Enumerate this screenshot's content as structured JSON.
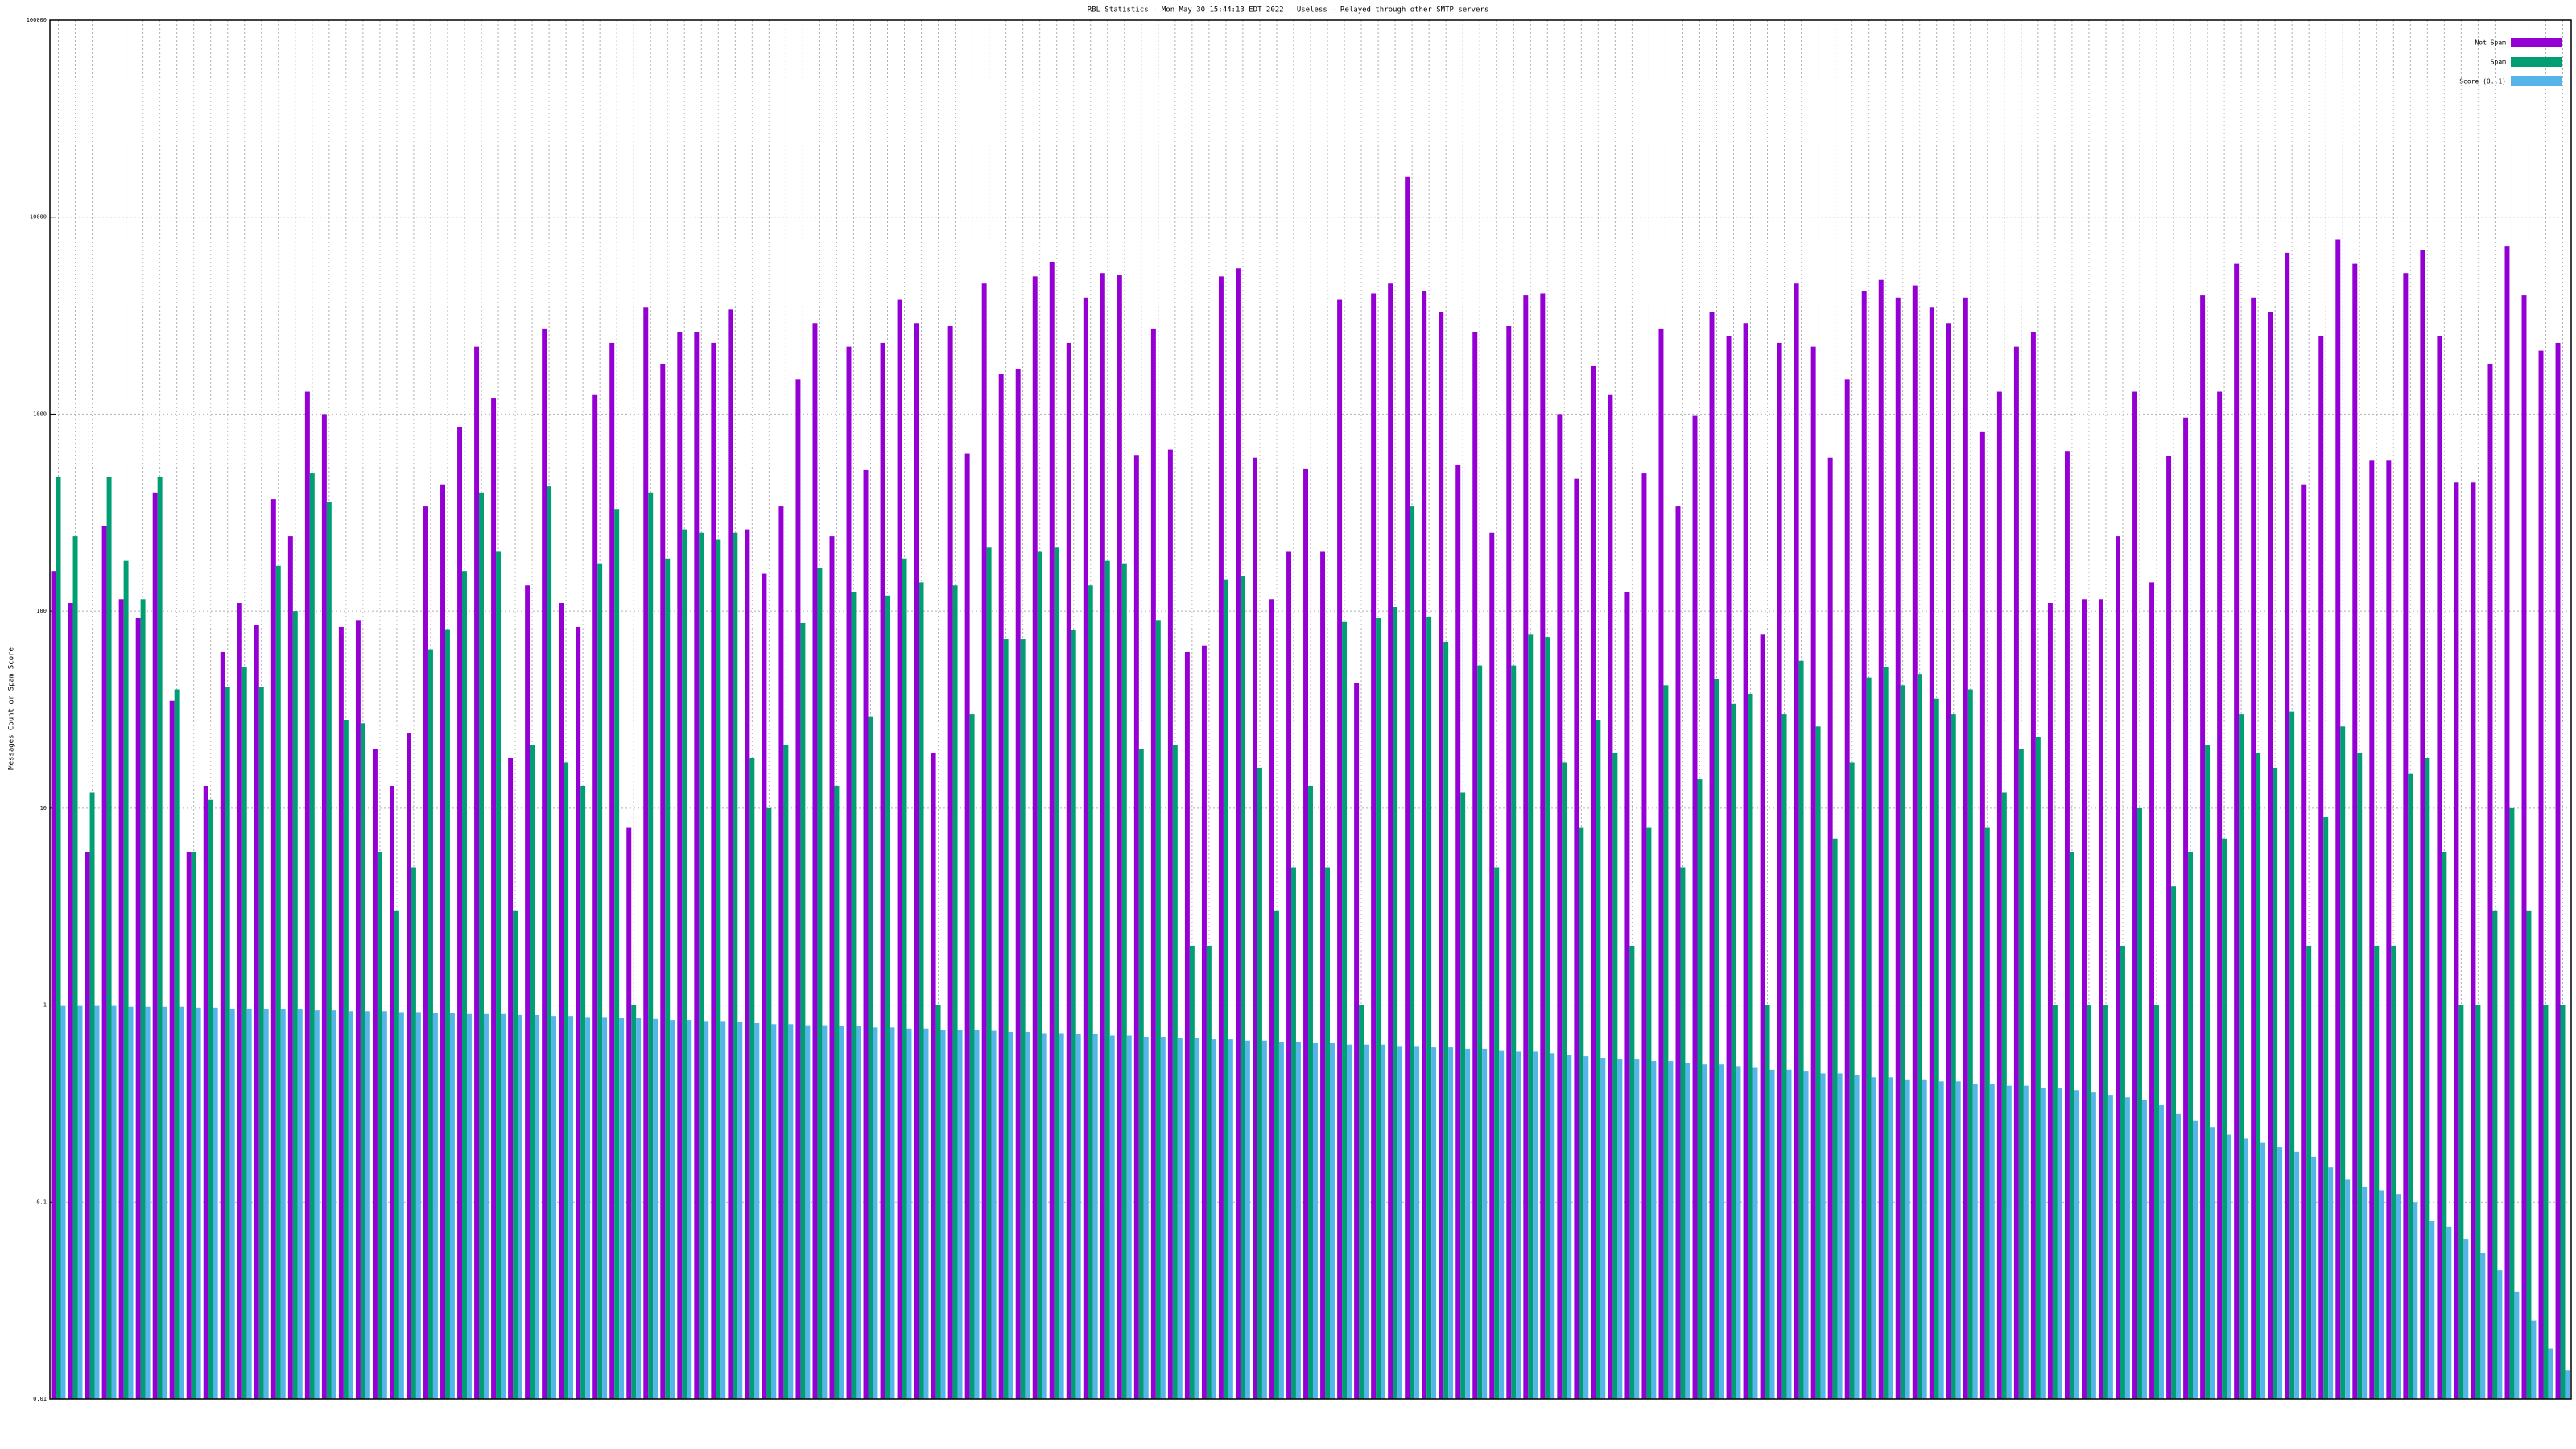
{
  "chart_data": {
    "type": "bar",
    "title": "RBL Statistics - Mon May 30 15:44:13 EDT 2022 - Useless - Relayed through other SMTP servers",
    "ylabel": "Messages Count or Spam Score",
    "log_scale": true,
    "grid": true,
    "legend_position": "top-right",
    "ylim": [
      0.01,
      100000
    ],
    "yticks": [
      0.01,
      0.1,
      1,
      10,
      100,
      1000,
      10000,
      100000
    ],
    "categories": [
      null,
      null,
      null,
      null,
      null,
      null,
      null,
      null,
      null,
      null,
      null,
      null,
      null,
      null,
      null,
      null,
      null,
      null,
      null,
      null,
      null,
      null,
      null,
      null,
      null,
      null,
      null,
      null,
      null,
      null,
      null,
      null,
      null,
      null,
      null,
      null,
      null,
      null,
      null,
      null,
      null,
      null,
      null,
      null,
      null,
      null,
      null,
      null,
      null,
      null,
      null,
      null,
      null,
      null,
      null,
      null,
      null,
      null,
      null,
      null,
      null,
      null,
      null,
      null,
      null,
      null,
      null,
      null,
      null,
      null,
      null,
      null,
      null,
      null,
      null,
      null,
      null,
      null,
      null,
      null,
      null,
      null,
      null,
      null,
      null,
      null,
      null,
      null,
      null,
      null,
      null,
      null,
      null,
      null,
      null,
      null,
      null,
      null,
      null,
      null,
      null,
      null,
      null,
      null,
      null,
      null,
      null,
      null,
      null,
      null,
      null,
      null,
      null,
      null,
      null,
      null,
      null,
      null,
      null,
      null,
      null,
      null,
      null,
      null,
      null,
      null,
      null,
      null,
      null,
      null,
      null,
      null,
      null,
      null,
      null,
      null,
      null,
      null,
      null,
      null,
      null,
      null,
      null,
      null,
      null,
      null,
      null,
      null,
      null
    ],
    "series": [
      {
        "name": "Not Spam",
        "color": "#9400d3",
        "values": [
          160,
          110,
          6,
          270,
          115,
          92,
          400,
          35,
          6,
          13,
          62,
          110,
          85,
          370,
          240,
          1300,
          1000,
          83,
          90,
          20,
          13,
          24,
          340,
          440,
          860,
          2200,
          1200,
          18,
          135,
          2700,
          110,
          83,
          1250,
          2300,
          8,
          3500,
          1800,
          2600,
          2600,
          2300,
          3400,
          260,
          155,
          340,
          1500,
          2900,
          240,
          2200,
          520,
          2300,
          3800,
          2900,
          19,
          2800,
          630,
          4600,
          1600,
          1700,
          5000,
          5900,
          2300,
          3900,
          5200,
          5100,
          620,
          2700,
          660,
          62,
          67,
          5000,
          5500,
          600,
          115,
          200,
          530,
          200,
          3800,
          43,
          4100,
          4600,
          16000,
          4200,
          3300,
          550,
          2600,
          250,
          2800,
          4000,
          4100,
          1000,
          470,
          1750,
          1250,
          125,
          500,
          2700,
          340,
          980,
          3300,
          2500,
          2900,
          76,
          2300,
          4600,
          2200,
          600,
          1500,
          4200,
          4800,
          3900,
          4500,
          3500,
          2900,
          3900,
          810,
          1300,
          2200,
          2600,
          110,
          650,
          115,
          115,
          240,
          1300,
          140,
          610,
          960,
          4000,
          1300,
          5800,
          3900,
          3300,
          6600,
          440,
          2500,
          7700,
          5800,
          580,
          580,
          5200,
          6800,
          2500,
          450,
          450,
          1800,
          7100,
          4000,
          2100,
          2300
        ]
      },
      {
        "name": "Spam",
        "color": "#009e73",
        "values": [
          480,
          240,
          12,
          480,
          180,
          115,
          480,
          40,
          6,
          11,
          41,
          52,
          41,
          170,
          100,
          500,
          360,
          28,
          27,
          6,
          3,
          5,
          64,
          81,
          160,
          400,
          200,
          3,
          21,
          430,
          17,
          13,
          175,
          330,
          1,
          400,
          185,
          260,
          250,
          230,
          250,
          18,
          10,
          21,
          87,
          165,
          13,
          125,
          29,
          120,
          185,
          140,
          1,
          135,
          30,
          210,
          72,
          72,
          200,
          210,
          80,
          135,
          180,
          175,
          20,
          90,
          21,
          2,
          2,
          145,
          150,
          16,
          3,
          5,
          13,
          5,
          88,
          1,
          92,
          105,
          340,
          93,
          70,
          12,
          53,
          5,
          53,
          76,
          74,
          17,
          8,
          28,
          19,
          2,
          8,
          42,
          5,
          14,
          45,
          34,
          38,
          1,
          30,
          56,
          26,
          7,
          17,
          46,
          52,
          42,
          48,
          36,
          30,
          40,
          8,
          12,
          20,
          23,
          1,
          6,
          1,
          1,
          2,
          10,
          1,
          4,
          6,
          21,
          7,
          30,
          19,
          16,
          31,
          2,
          9,
          26,
          19,
          2,
          2,
          15,
          18,
          6,
          1,
          1,
          3,
          10,
          3,
          1,
          1
        ]
      },
      {
        "name": "Score (0..1)",
        "color": "#56b4e9",
        "values": [
          0.99,
          0.99,
          0.99,
          0.99,
          0.98,
          0.98,
          0.98,
          0.98,
          0.97,
          0.97,
          0.96,
          0.96,
          0.95,
          0.95,
          0.95,
          0.94,
          0.94,
          0.93,
          0.93,
          0.93,
          0.92,
          0.92,
          0.91,
          0.91,
          0.9,
          0.9,
          0.9,
          0.89,
          0.89,
          0.88,
          0.88,
          0.87,
          0.87,
          0.86,
          0.86,
          0.85,
          0.84,
          0.84,
          0.83,
          0.83,
          0.82,
          0.81,
          0.8,
          0.8,
          0.79,
          0.79,
          0.78,
          0.78,
          0.77,
          0.77,
          0.76,
          0.76,
          0.75,
          0.75,
          0.75,
          0.74,
          0.73,
          0.73,
          0.72,
          0.72,
          0.71,
          0.71,
          0.7,
          0.7,
          0.69,
          0.69,
          0.68,
          0.68,
          0.67,
          0.67,
          0.66,
          0.66,
          0.65,
          0.65,
          0.64,
          0.64,
          0.63,
          0.63,
          0.63,
          0.62,
          0.62,
          0.61,
          0.61,
          0.6,
          0.6,
          0.59,
          0.58,
          0.58,
          0.57,
          0.56,
          0.55,
          0.54,
          0.53,
          0.53,
          0.52,
          0.52,
          0.51,
          0.5,
          0.5,
          0.49,
          0.48,
          0.47,
          0.47,
          0.46,
          0.45,
          0.45,
          0.44,
          0.43,
          0.43,
          0.42,
          0.42,
          0.41,
          0.41,
          0.4,
          0.4,
          0.39,
          0.39,
          0.38,
          0.38,
          0.37,
          0.36,
          0.35,
          0.34,
          0.33,
          0.31,
          0.28,
          0.26,
          0.24,
          0.22,
          0.21,
          0.2,
          0.19,
          0.18,
          0.17,
          0.15,
          0.13,
          0.12,
          0.115,
          0.11,
          0.1,
          0.08,
          0.075,
          0.065,
          0.055,
          0.045,
          0.035,
          0.025,
          0.018,
          0.014
        ]
      }
    ]
  }
}
